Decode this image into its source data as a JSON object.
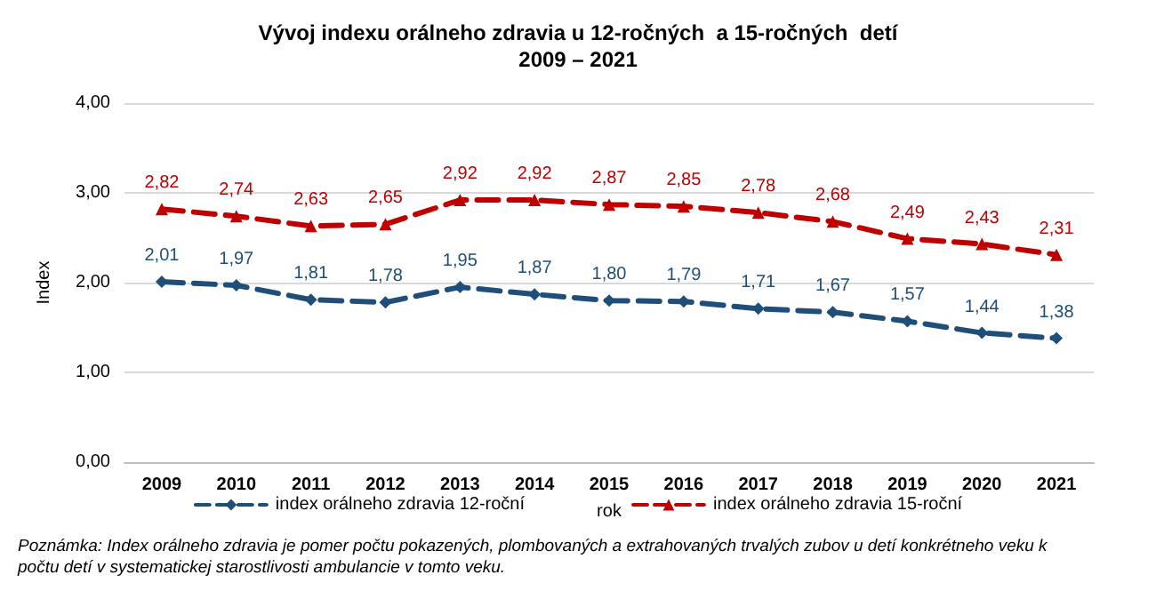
{
  "chart_data": {
    "type": "line",
    "title": "Vývoj indexu orálneho zdravia u 12-ročných  a 15-ročných  detí\n2009 – 2021",
    "xlabel": "rok",
    "ylabel": "Index",
    "categories": [
      "2009",
      "2010",
      "2011",
      "2012",
      "2013",
      "2014",
      "2015",
      "2016",
      "2017",
      "2018",
      "2019",
      "2020",
      "2021"
    ],
    "series": [
      {
        "name": "index orálneho zdravia 12-roční",
        "color": "#1f4e79",
        "marker": "diamond",
        "values": [
          2.01,
          1.97,
          1.81,
          1.78,
          1.95,
          1.87,
          1.8,
          1.79,
          1.71,
          1.67,
          1.57,
          1.44,
          1.38
        ],
        "value_labels": [
          "2,01",
          "1,97",
          "1,81",
          "1,78",
          "1,95",
          "1,87",
          "1,80",
          "1,79",
          "1,71",
          "1,67",
          "1,57",
          "1,44",
          "1,38"
        ]
      },
      {
        "name": "index orálneho zdravia 15-roční",
        "color": "#c00000",
        "marker": "triangle",
        "values": [
          2.82,
          2.74,
          2.63,
          2.65,
          2.92,
          2.92,
          2.87,
          2.85,
          2.78,
          2.68,
          2.49,
          2.43,
          2.31
        ],
        "value_labels": [
          "2,82",
          "2,74",
          "2,63",
          "2,65",
          "2,92",
          "2,92",
          "2,87",
          "2,85",
          "2,78",
          "2,68",
          "2,49",
          "2,43",
          "2,31"
        ]
      }
    ],
    "ylim": [
      0,
      4
    ],
    "yticks": [
      {
        "value": 0,
        "label": "0,00"
      },
      {
        "value": 1,
        "label": "1,00"
      },
      {
        "value": 2,
        "label": "2,00"
      },
      {
        "value": 3,
        "label": "3,00"
      },
      {
        "value": 4,
        "label": "4,00"
      }
    ],
    "grid": "y",
    "legend": "bottom",
    "line_style": "dashed",
    "annotations": [
      "Poznámka: Index orálneho zdravia je pomer počtu pokazených, plombovaných a extrahovaných trvalých zubov u detí konkrétneho veku k počtu detí v systematickej starostlivosti ambulancie v tomto veku."
    ]
  }
}
